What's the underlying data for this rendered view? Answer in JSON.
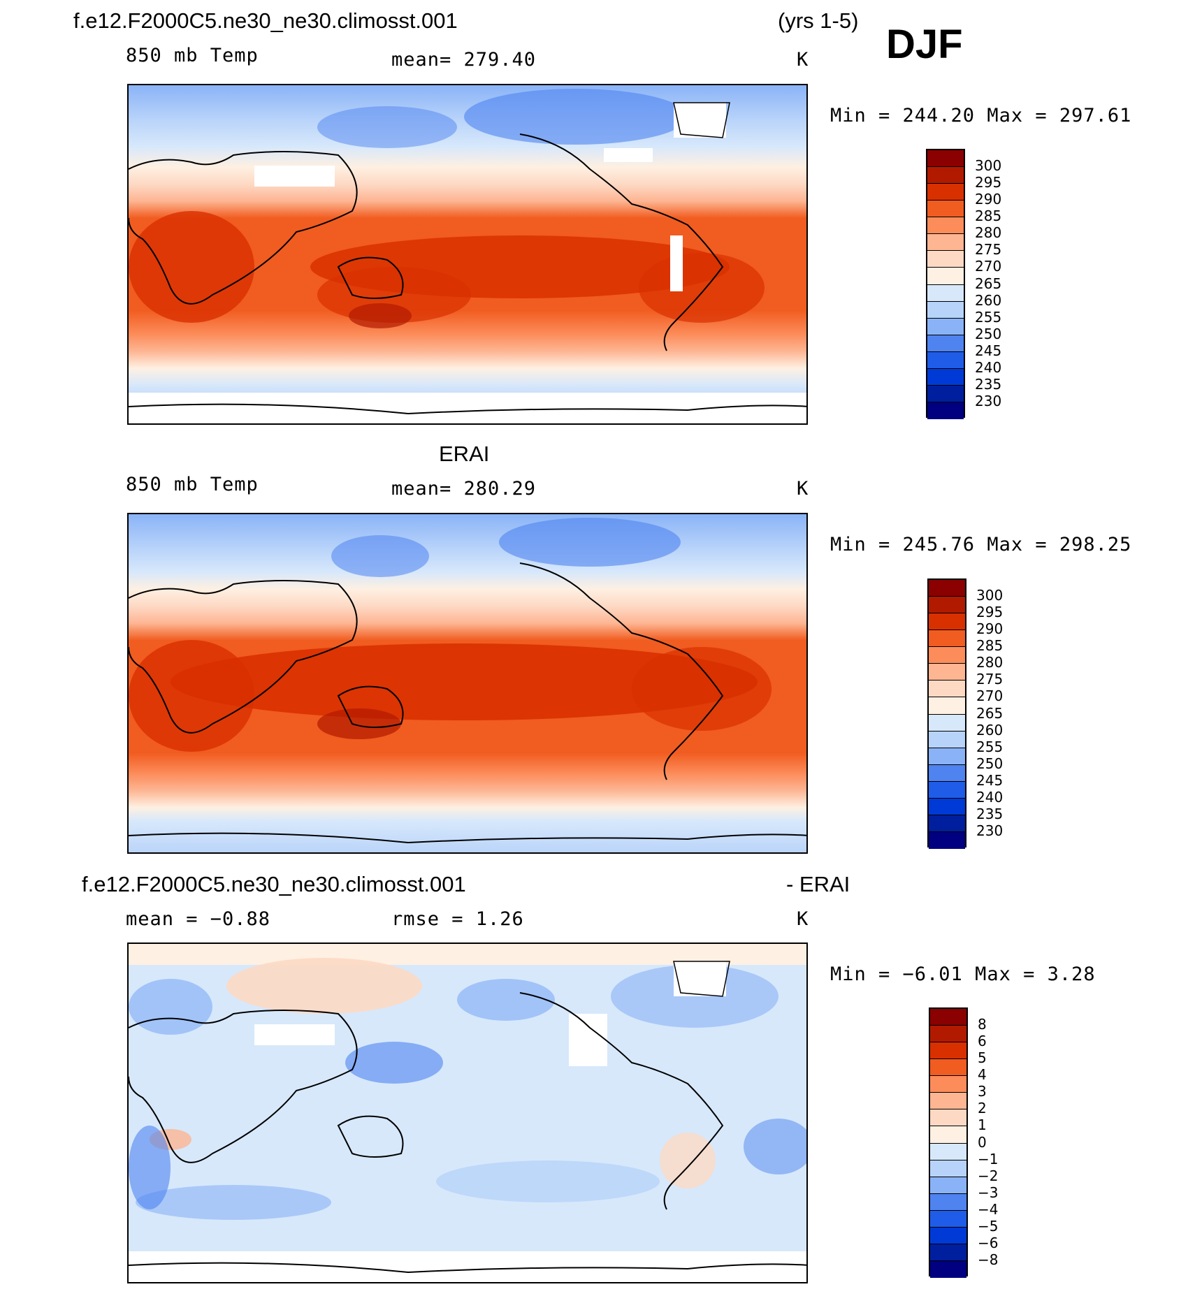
{
  "header": {
    "run_name": "f.e12.F2000C5.ne30_ne30.climosst.001",
    "years": "(yrs 1-5)",
    "season": "DJF"
  },
  "panels": [
    {
      "title": "",
      "var": "850 mb Temp",
      "stat": "mean=  279.40",
      "units": "K",
      "minmax": "Min  =  244.20  Max  =  297.61",
      "colorbar": {
        "labels": [
          "300",
          "295",
          "290",
          "285",
          "280",
          "275",
          "270",
          "265",
          "260",
          "255",
          "250",
          "245",
          "240",
          "235",
          "230"
        ],
        "colors": [
          "#8b0000",
          "#b21a00",
          "#d93000",
          "#f15c20",
          "#fc8c5a",
          "#fdb592",
          "#fdd9c4",
          "#fef0e2",
          "#d7e8fb",
          "#b8d3fa",
          "#8ab3f7",
          "#4f83f0",
          "#1f5de8",
          "#003ad6",
          "#001f9e",
          "#000080"
        ]
      }
    },
    {
      "title": "ERAI",
      "var": "850 mb Temp",
      "stat": "mean=  280.29",
      "units": "K",
      "minmax": "Min  =  245.76  Max  =  298.25",
      "colorbar": {
        "labels": [
          "300",
          "295",
          "290",
          "285",
          "280",
          "275",
          "270",
          "265",
          "260",
          "255",
          "250",
          "245",
          "240",
          "235",
          "230"
        ],
        "colors": [
          "#8b0000",
          "#b21a00",
          "#d93000",
          "#f15c20",
          "#fc8c5a",
          "#fdb592",
          "#fdd9c4",
          "#fef0e2",
          "#d7e8fb",
          "#b8d3fa",
          "#8ab3f7",
          "#4f83f0",
          "#1f5de8",
          "#003ad6",
          "#001f9e",
          "#000080"
        ]
      }
    },
    {
      "title": "f.e12.F2000C5.ne30_ne30.climosst.001",
      "title_right": "- ERAI",
      "var": "mean  =   −0.88",
      "stat": "rmse  =     1.26",
      "units": "K",
      "minmax": "Min  =   −6.01  Max  =     3.28",
      "colorbar": {
        "labels": [
          "8",
          "6",
          "5",
          "4",
          "3",
          "2",
          "1",
          "0",
          "−1",
          "−2",
          "−3",
          "−4",
          "−5",
          "−6",
          "−8"
        ],
        "colors": [
          "#8b0000",
          "#b21a00",
          "#d93000",
          "#f15c20",
          "#fc8c5a",
          "#fdb592",
          "#fdd9c4",
          "#fef0e2",
          "#d7e8fb",
          "#b8d3fa",
          "#8ab3f7",
          "#4f83f0",
          "#1f5de8",
          "#003ad6",
          "#001f9e",
          "#000080"
        ]
      }
    }
  ]
}
